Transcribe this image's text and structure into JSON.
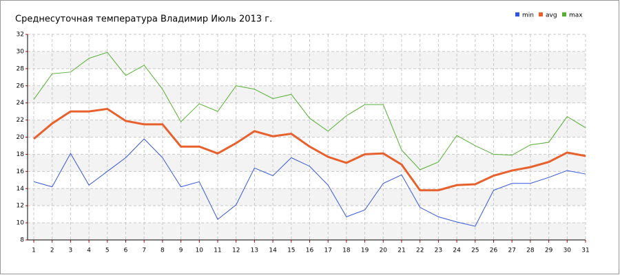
{
  "chart_data": {
    "type": "line",
    "title": "Среднесуточная температура Владимир  Июль 2013 г.",
    "x": [
      1,
      2,
      3,
      4,
      5,
      6,
      7,
      8,
      9,
      10,
      11,
      12,
      13,
      14,
      15,
      16,
      17,
      18,
      19,
      20,
      21,
      22,
      23,
      24,
      25,
      26,
      27,
      28,
      29,
      30,
      31
    ],
    "xlim": [
      1,
      31
    ],
    "xticks": [
      1,
      2,
      3,
      4,
      5,
      6,
      7,
      8,
      9,
      10,
      11,
      12,
      13,
      14,
      15,
      16,
      17,
      18,
      19,
      20,
      21,
      22,
      23,
      24,
      25,
      26,
      27,
      28,
      29,
      30,
      31
    ],
    "ylim": [
      8,
      32
    ],
    "yticks": [
      8,
      10,
      12,
      14,
      16,
      18,
      20,
      22,
      24,
      26,
      28,
      30,
      32
    ],
    "grid": true,
    "legend": "top-right",
    "series": [
      {
        "name": "min",
        "color": "#3355dd",
        "values": [
          14.8,
          14.2,
          18.1,
          14.4,
          16.0,
          17.6,
          19.8,
          17.6,
          14.2,
          14.8,
          10.4,
          12.1,
          16.4,
          15.5,
          17.6,
          16.6,
          14.4,
          10.7,
          11.5,
          14.6,
          15.6,
          11.8,
          10.7,
          10.1,
          9.6,
          13.8,
          14.6,
          14.6,
          15.3,
          16.1,
          15.7
        ]
      },
      {
        "name": "avg",
        "color": "#e8602c",
        "values": [
          19.8,
          21.6,
          23.0,
          23.0,
          23.3,
          21.9,
          21.5,
          21.5,
          18.9,
          18.9,
          18.1,
          19.3,
          20.7,
          20.1,
          20.4,
          18.9,
          17.7,
          17.0,
          18.0,
          18.1,
          16.8,
          13.8,
          13.8,
          14.4,
          14.5,
          15.5,
          16.1,
          16.5,
          17.1,
          18.2,
          17.8
        ]
      },
      {
        "name": "max",
        "color": "#55b033",
        "values": [
          24.4,
          27.4,
          27.6,
          29.2,
          29.9,
          27.2,
          28.4,
          25.6,
          21.8,
          23.9,
          23.0,
          26.0,
          25.6,
          24.5,
          25.0,
          22.2,
          20.7,
          22.5,
          23.8,
          23.8,
          18.5,
          16.2,
          17.1,
          20.2,
          19.0,
          18.0,
          17.9,
          19.1,
          19.4,
          22.4,
          21.1
        ]
      }
    ]
  }
}
